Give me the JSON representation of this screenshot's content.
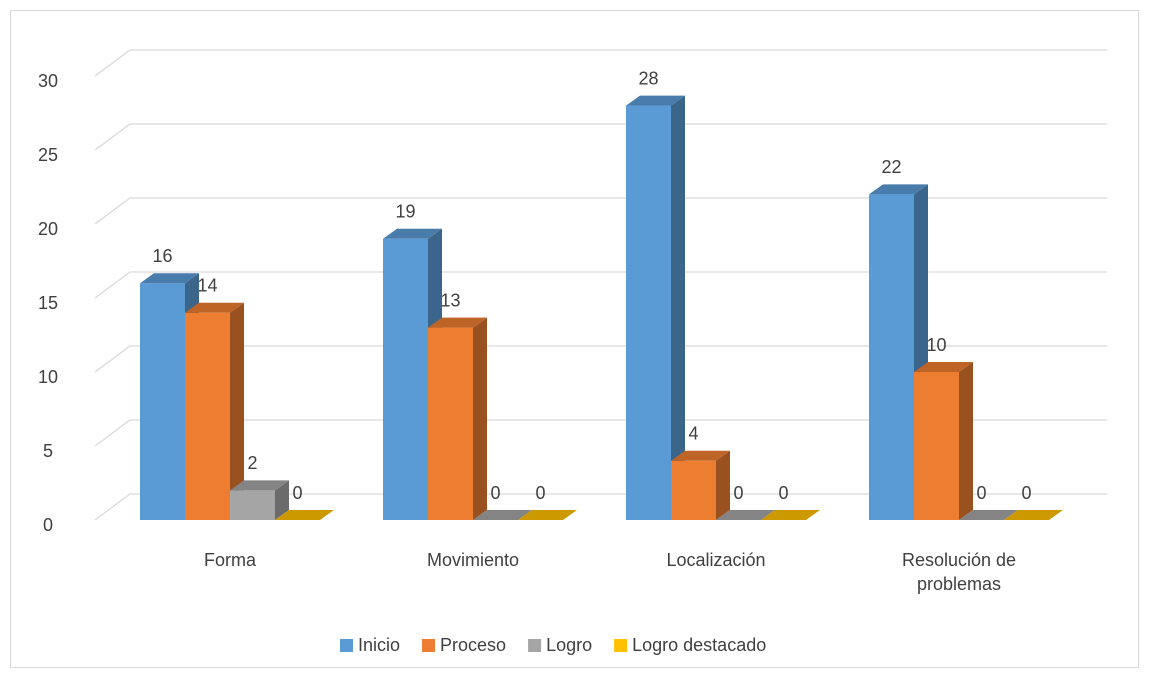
{
  "chart_data": {
    "type": "bar3d",
    "categories": [
      "Forma",
      "Movimiento",
      "Localización",
      "Resolución de problemas"
    ],
    "series": [
      {
        "name": "Inicio",
        "color": "#5b9bd5",
        "values": [
          16,
          19,
          28,
          22
        ]
      },
      {
        "name": "Proceso",
        "color": "#ed7d31",
        "values": [
          14,
          13,
          4,
          10
        ]
      },
      {
        "name": "Logro",
        "color": "#a5a5a5",
        "values": [
          2,
          0,
          0,
          0
        ]
      },
      {
        "name": "Logro destacado",
        "color": "#ffc000",
        "values": [
          0,
          0,
          0,
          0
        ]
      }
    ],
    "ylim": [
      0,
      30
    ],
    "yticks": [
      0,
      5,
      10,
      15,
      20,
      25,
      30
    ],
    "grid": true,
    "legend": "bottom"
  }
}
